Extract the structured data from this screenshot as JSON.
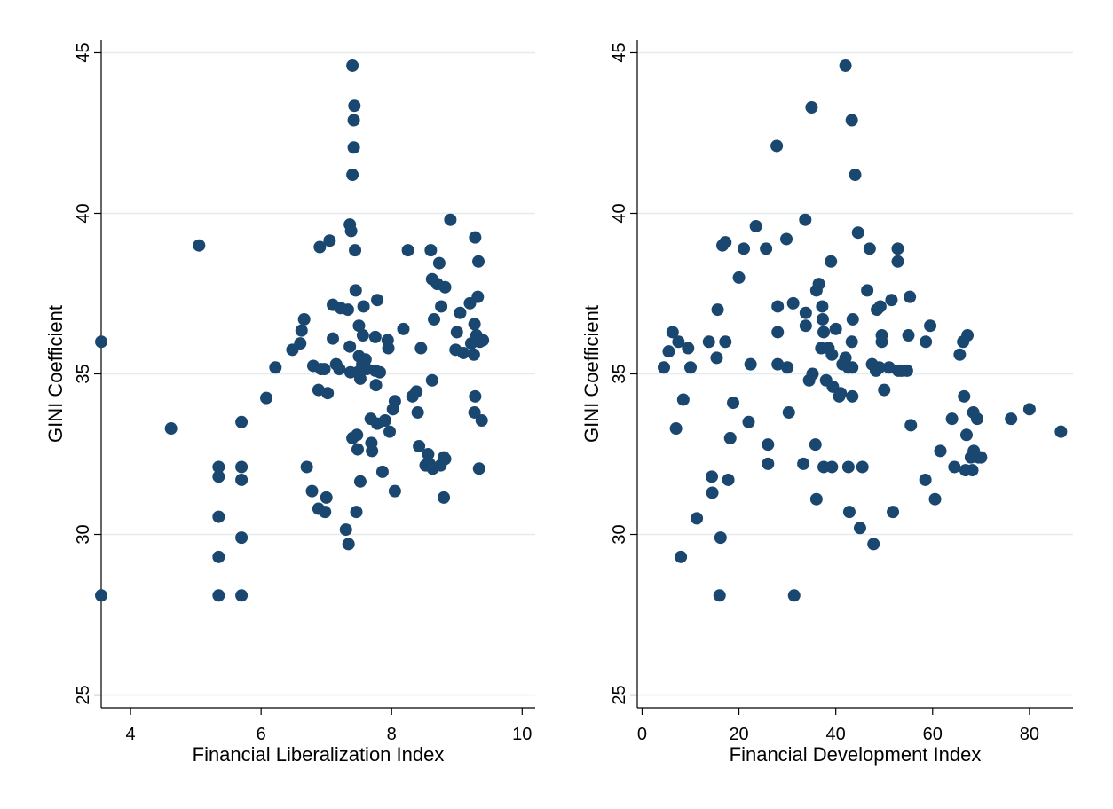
{
  "chart_data": [
    {
      "type": "scatter",
      "xlabel": "Financial Liberalization Index",
      "ylabel": "GINI Coefficient",
      "xlim": [
        3.55,
        10.2
      ],
      "ylim": [
        24.6,
        45.4
      ],
      "xticks": [
        4,
        6,
        8,
        10
      ],
      "yticks": [
        25,
        30,
        35,
        40,
        45
      ],
      "grid": "horizontal",
      "color": "#1a476f",
      "points": [
        [
          3.55,
          36.0
        ],
        [
          3.55,
          28.1
        ],
        [
          4.62,
          33.3
        ],
        [
          5.05,
          39.0
        ],
        [
          5.35,
          32.1
        ],
        [
          5.35,
          31.8
        ],
        [
          5.35,
          30.55
        ],
        [
          5.35,
          29.3
        ],
        [
          5.35,
          28.1
        ],
        [
          5.7,
          33.5
        ],
        [
          5.7,
          32.1
        ],
        [
          5.7,
          31.7
        ],
        [
          5.7,
          29.9
        ],
        [
          5.7,
          28.1
        ],
        [
          6.08,
          34.25
        ],
        [
          6.22,
          35.2
        ],
        [
          6.48,
          35.75
        ],
        [
          6.6,
          35.95
        ],
        [
          6.62,
          36.35
        ],
        [
          6.66,
          36.7
        ],
        [
          6.7,
          32.1
        ],
        [
          6.78,
          31.35
        ],
        [
          6.8,
          35.25
        ],
        [
          6.88,
          34.5
        ],
        [
          6.88,
          30.8
        ],
        [
          6.9,
          38.95
        ],
        [
          6.92,
          35.15
        ],
        [
          6.97,
          35.15
        ],
        [
          6.98,
          30.7
        ],
        [
          7.0,
          31.15
        ],
        [
          7.02,
          34.4
        ],
        [
          7.05,
          39.15
        ],
        [
          7.1,
          37.15
        ],
        [
          7.1,
          36.1
        ],
        [
          7.15,
          35.3
        ],
        [
          7.2,
          35.15
        ],
        [
          7.22,
          37.05
        ],
        [
          7.3,
          30.15
        ],
        [
          7.33,
          37.0
        ],
        [
          7.34,
          29.7
        ],
        [
          7.36,
          39.65
        ],
        [
          7.36,
          35.85
        ],
        [
          7.37,
          35.05
        ],
        [
          7.38,
          39.45
        ],
        [
          7.4,
          44.6
        ],
        [
          7.4,
          41.2
        ],
        [
          7.42,
          42.05
        ],
        [
          7.42,
          42.9
        ],
        [
          7.43,
          43.35
        ],
        [
          7.4,
          33.0
        ],
        [
          7.44,
          38.85
        ],
        [
          7.45,
          37.6
        ],
        [
          7.46,
          30.7
        ],
        [
          7.47,
          33.1
        ],
        [
          7.48,
          35.05
        ],
        [
          7.48,
          32.65
        ],
        [
          7.5,
          36.5
        ],
        [
          7.5,
          35.55
        ],
        [
          7.52,
          35.1
        ],
        [
          7.52,
          34.85
        ],
        [
          7.52,
          31.65
        ],
        [
          7.55,
          35.3
        ],
        [
          7.55,
          35.2
        ],
        [
          7.56,
          36.2
        ],
        [
          7.57,
          37.1
        ],
        [
          7.6,
          35.45
        ],
        [
          7.62,
          35.15
        ],
        [
          7.68,
          33.6
        ],
        [
          7.69,
          32.85
        ],
        [
          7.7,
          32.6
        ],
        [
          7.75,
          36.15
        ],
        [
          7.75,
          35.1
        ],
        [
          7.76,
          34.65
        ],
        [
          7.78,
          33.45
        ],
        [
          7.78,
          37.3
        ],
        [
          7.82,
          35.05
        ],
        [
          7.86,
          31.95
        ],
        [
          7.9,
          33.55
        ],
        [
          7.94,
          36.05
        ],
        [
          7.95,
          35.8
        ],
        [
          7.97,
          33.2
        ],
        [
          8.02,
          33.9
        ],
        [
          8.05,
          34.15
        ],
        [
          8.05,
          31.35
        ],
        [
          8.18,
          36.4
        ],
        [
          8.25,
          38.85
        ],
        [
          8.32,
          34.3
        ],
        [
          8.38,
          34.45
        ],
        [
          8.4,
          33.8
        ],
        [
          8.42,
          32.75
        ],
        [
          8.45,
          35.8
        ],
        [
          8.52,
          32.15
        ],
        [
          8.56,
          32.5
        ],
        [
          8.58,
          32.2
        ],
        [
          8.6,
          38.85
        ],
        [
          8.62,
          37.95
        ],
        [
          8.62,
          34.8
        ],
        [
          8.63,
          32.05
        ],
        [
          8.65,
          36.7
        ],
        [
          8.7,
          37.8
        ],
        [
          8.73,
          38.45
        ],
        [
          8.75,
          32.15
        ],
        [
          8.76,
          37.1
        ],
        [
          8.8,
          32.4
        ],
        [
          8.8,
          31.15
        ],
        [
          8.82,
          32.35
        ],
        [
          8.82,
          37.7
        ],
        [
          8.9,
          39.8
        ],
        [
          8.98,
          35.75
        ],
        [
          9.0,
          36.3
        ],
        [
          9.05,
          36.9
        ],
        [
          9.1,
          35.65
        ],
        [
          9.2,
          37.2
        ],
        [
          9.22,
          35.95
        ],
        [
          9.26,
          35.6
        ],
        [
          9.27,
          36.55
        ],
        [
          9.27,
          33.8
        ],
        [
          9.28,
          39.25
        ],
        [
          9.28,
          34.3
        ],
        [
          9.3,
          36.2
        ],
        [
          9.32,
          37.4
        ],
        [
          9.33,
          38.5
        ],
        [
          9.34,
          32.05
        ],
        [
          9.35,
          36.0
        ],
        [
          9.38,
          33.55
        ],
        [
          9.4,
          36.05
        ]
      ]
    },
    {
      "type": "scatter",
      "xlabel": "Financial Development Index",
      "ylabel": "GINI Coefficient",
      "xlim": [
        -1,
        89
      ],
      "ylim": [
        24.6,
        45.4
      ],
      "xticks": [
        0,
        20,
        40,
        60,
        80
      ],
      "yticks": [
        25,
        30,
        35,
        40,
        45
      ],
      "grid": "horizontal",
      "color": "#1a476f",
      "points": [
        [
          4.5,
          35.2
        ],
        [
          5.5,
          35.7
        ],
        [
          6.3,
          36.3
        ],
        [
          7.0,
          33.3
        ],
        [
          7.5,
          36.0
        ],
        [
          8.0,
          29.3
        ],
        [
          8.5,
          34.2
        ],
        [
          9.5,
          35.8
        ],
        [
          10.0,
          35.2
        ],
        [
          11.3,
          30.5
        ],
        [
          13.8,
          36.0
        ],
        [
          14.4,
          31.8
        ],
        [
          14.5,
          31.3
        ],
        [
          15.4,
          35.5
        ],
        [
          15.6,
          37.0
        ],
        [
          16.0,
          28.1
        ],
        [
          16.2,
          29.9
        ],
        [
          16.6,
          39.0
        ],
        [
          17.2,
          39.1
        ],
        [
          17.2,
          36.0
        ],
        [
          17.8,
          31.7
        ],
        [
          18.2,
          33.0
        ],
        [
          18.8,
          34.1
        ],
        [
          20.0,
          38.0
        ],
        [
          21.0,
          38.9
        ],
        [
          22.0,
          33.5
        ],
        [
          22.4,
          35.3
        ],
        [
          23.5,
          39.6
        ],
        [
          25.6,
          38.9
        ],
        [
          26.0,
          32.8
        ],
        [
          26.0,
          32.2
        ],
        [
          27.8,
          42.1
        ],
        [
          28.0,
          37.1
        ],
        [
          28.0,
          36.3
        ],
        [
          28.0,
          35.3
        ],
        [
          29.8,
          39.2
        ],
        [
          30.0,
          35.2
        ],
        [
          30.3,
          33.8
        ],
        [
          31.2,
          37.2
        ],
        [
          31.4,
          28.1
        ],
        [
          33.3,
          32.2
        ],
        [
          33.7,
          39.8
        ],
        [
          33.8,
          36.9
        ],
        [
          33.8,
          36.5
        ],
        [
          34.5,
          34.8
        ],
        [
          35.0,
          43.3
        ],
        [
          35.2,
          35.0
        ],
        [
          35.8,
          32.8
        ],
        [
          36.0,
          31.1
        ],
        [
          36.0,
          37.6
        ],
        [
          36.5,
          37.8
        ],
        [
          37.0,
          35.8
        ],
        [
          37.2,
          37.1
        ],
        [
          37.3,
          36.7
        ],
        [
          37.5,
          36.3
        ],
        [
          37.5,
          32.1
        ],
        [
          38.0,
          34.8
        ],
        [
          38.5,
          35.8
        ],
        [
          39.0,
          38.5
        ],
        [
          39.2,
          32.1
        ],
        [
          39.2,
          35.6
        ],
        [
          39.4,
          34.6
        ],
        [
          40.0,
          36.4
        ],
        [
          40.7,
          34.3
        ],
        [
          41.0,
          34.4
        ],
        [
          41.4,
          35.3
        ],
        [
          42.0,
          44.6
        ],
        [
          42.0,
          35.5
        ],
        [
          42.6,
          32.1
        ],
        [
          42.6,
          35.2
        ],
        [
          42.8,
          30.7
        ],
        [
          43.3,
          42.9
        ],
        [
          43.3,
          36.0
        ],
        [
          43.4,
          35.2
        ],
        [
          43.5,
          36.7
        ],
        [
          43.4,
          34.3
        ],
        [
          44.0,
          41.2
        ],
        [
          44.6,
          39.4
        ],
        [
          45.0,
          30.2
        ],
        [
          45.5,
          32.1
        ],
        [
          46.5,
          37.6
        ],
        [
          47.0,
          38.9
        ],
        [
          47.5,
          35.3
        ],
        [
          47.8,
          29.7
        ],
        [
          48.3,
          35.1
        ],
        [
          48.5,
          37.0
        ],
        [
          49.0,
          35.2
        ],
        [
          49.2,
          37.1
        ],
        [
          49.5,
          36.2
        ],
        [
          49.5,
          36.0
        ],
        [
          50.0,
          34.5
        ],
        [
          51.0,
          35.2
        ],
        [
          51.5,
          37.3
        ],
        [
          51.8,
          30.7
        ],
        [
          52.8,
          38.9
        ],
        [
          52.8,
          38.5
        ],
        [
          52.9,
          35.1
        ],
        [
          53.5,
          35.1
        ],
        [
          54.7,
          35.1
        ],
        [
          55.0,
          36.2
        ],
        [
          55.3,
          37.4
        ],
        [
          55.5,
          33.4
        ],
        [
          58.6,
          36.0
        ],
        [
          58.5,
          31.7
        ],
        [
          59.5,
          36.5
        ],
        [
          60.5,
          31.1
        ],
        [
          61.6,
          32.6
        ],
        [
          64.0,
          33.6
        ],
        [
          64.5,
          32.1
        ],
        [
          65.6,
          35.6
        ],
        [
          66.3,
          36.0
        ],
        [
          66.5,
          34.3
        ],
        [
          66.8,
          32.0
        ],
        [
          67.0,
          33.1
        ],
        [
          67.2,
          36.2
        ],
        [
          67.9,
          32.4
        ],
        [
          68.2,
          32.0
        ],
        [
          68.4,
          33.8
        ],
        [
          68.5,
          32.6
        ],
        [
          69.2,
          33.6
        ],
        [
          69.5,
          32.4
        ],
        [
          70.0,
          32.4
        ],
        [
          76.2,
          33.6
        ],
        [
          80.0,
          33.9
        ],
        [
          86.5,
          33.2
        ]
      ]
    }
  ]
}
